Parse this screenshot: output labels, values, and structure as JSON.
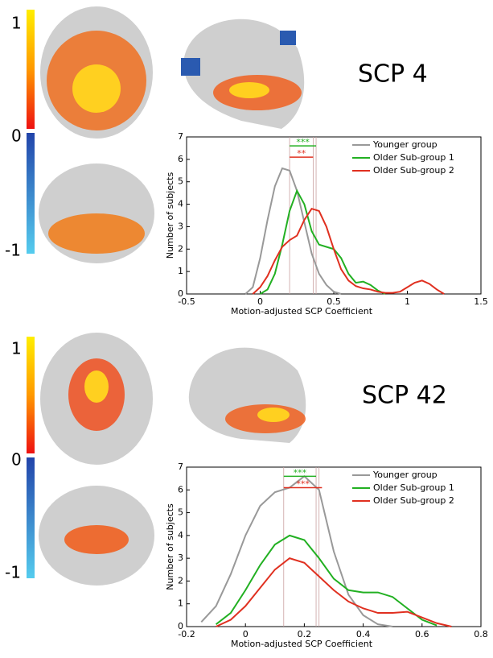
{
  "panels": [
    {
      "label": "SCP 4",
      "colorbar_labels": [
        "1",
        "0",
        "-1"
      ]
    },
    {
      "label": "SCP 42",
      "colorbar_labels": [
        "1",
        "0",
        "-1"
      ]
    }
  ],
  "chart_data": [
    {
      "type": "line",
      "xlabel": "Motion-adjusted SCP Coefficient",
      "ylabel": "Number of subjects",
      "xlim": [
        -0.5,
        1.5
      ],
      "xticks": [
        -0.5,
        0,
        0.5,
        1,
        1.5
      ],
      "ylim": [
        0,
        7
      ],
      "yticks": [
        0,
        1,
        2,
        3,
        4,
        5,
        6,
        7
      ],
      "legend": "upper right",
      "x": [
        -0.1,
        -0.05,
        0,
        0.05,
        0.1,
        0.15,
        0.2,
        0.25,
        0.3,
        0.35,
        0.4,
        0.45,
        0.5,
        0.55,
        0.6,
        0.65,
        0.7,
        0.75,
        0.8,
        0.85,
        0.9,
        0.95,
        1.0,
        1.05,
        1.1,
        1.15,
        1.2,
        1.25,
        1.3
      ],
      "series": [
        {
          "name": "Younger group",
          "color": "#999999",
          "values": [
            0,
            0.3,
            1.6,
            3.3,
            4.8,
            5.6,
            5.5,
            4.6,
            3.2,
            1.8,
            0.9,
            0.4,
            0.1,
            0,
            null,
            null,
            null,
            null,
            null,
            null,
            null,
            null,
            null,
            null,
            null,
            null,
            null,
            null,
            null
          ]
        },
        {
          "name": "Older Sub-group 1",
          "color": "#22b022",
          "values": [
            null,
            null,
            0,
            0.2,
            0.9,
            2.2,
            3.7,
            4.6,
            4.0,
            2.8,
            2.2,
            2.1,
            2.0,
            1.6,
            0.9,
            0.5,
            0.55,
            0.4,
            0.15,
            0,
            null,
            null,
            null,
            null,
            null,
            null,
            null,
            null,
            null
          ]
        },
        {
          "name": "Older Sub-group 2",
          "color": "#e03020",
          "values": [
            null,
            0,
            0.3,
            0.8,
            1.5,
            2.1,
            2.4,
            2.6,
            3.3,
            3.8,
            3.7,
            3.0,
            2.0,
            1.1,
            0.6,
            0.35,
            0.25,
            0.2,
            0.1,
            0.05,
            0.05,
            0.1,
            0.3,
            0.5,
            0.6,
            0.45,
            0.2,
            0,
            null
          ]
        }
      ],
      "vlines": [
        0.2,
        0.36,
        0.38
      ],
      "significance": [
        {
          "label": "***",
          "color": "#22b022",
          "x": [
            0.2,
            0.38
          ],
          "y": 6.6
        },
        {
          "label": "**",
          "color": "#e03020",
          "x": [
            0.2,
            0.36
          ],
          "y": 6.1
        }
      ]
    },
    {
      "type": "line",
      "xlabel": "Motion-adjusted SCP Coefficient",
      "ylabel": "Number of subjects",
      "xlim": [
        -0.2,
        0.8
      ],
      "xticks": [
        -0.2,
        0,
        0.2,
        0.4,
        0.6,
        0.8
      ],
      "ylim": [
        0,
        7
      ],
      "yticks": [
        0,
        1,
        2,
        3,
        4,
        5,
        6,
        7
      ],
      "legend": "upper right",
      "x": [
        -0.15,
        -0.1,
        -0.05,
        0,
        0.05,
        0.1,
        0.15,
        0.2,
        0.25,
        0.3,
        0.35,
        0.4,
        0.45,
        0.5,
        0.55,
        0.6,
        0.65,
        0.7
      ],
      "series": [
        {
          "name": "Younger group",
          "color": "#999999",
          "values": [
            0.2,
            0.9,
            2.3,
            4.0,
            5.3,
            5.9,
            6.1,
            6.6,
            6.0,
            3.3,
            1.4,
            0.5,
            0.1,
            0,
            null,
            null,
            null,
            null
          ]
        },
        {
          "name": "Older Sub-group 1",
          "color": "#22b022",
          "values": [
            null,
            0.1,
            0.6,
            1.6,
            2.7,
            3.6,
            4.0,
            3.8,
            3.0,
            2.1,
            1.6,
            1.5,
            1.5,
            1.3,
            0.8,
            0.3,
            0.05,
            null
          ]
        },
        {
          "name": "Older Sub-group 2",
          "color": "#e03020",
          "values": [
            null,
            0,
            0.3,
            0.9,
            1.7,
            2.5,
            3.0,
            2.8,
            2.2,
            1.6,
            1.1,
            0.8,
            0.6,
            0.6,
            0.65,
            0.4,
            0.15,
            0
          ]
        }
      ],
      "vlines": [
        0.13,
        0.24,
        0.25
      ],
      "significance": [
        {
          "label": "***",
          "color": "#22b022",
          "x": [
            0.13,
            0.24
          ],
          "y": 6.6
        },
        {
          "label": "***",
          "color": "#e03020",
          "x": [
            0.13,
            0.26
          ],
          "y": 6.1
        }
      ]
    }
  ]
}
